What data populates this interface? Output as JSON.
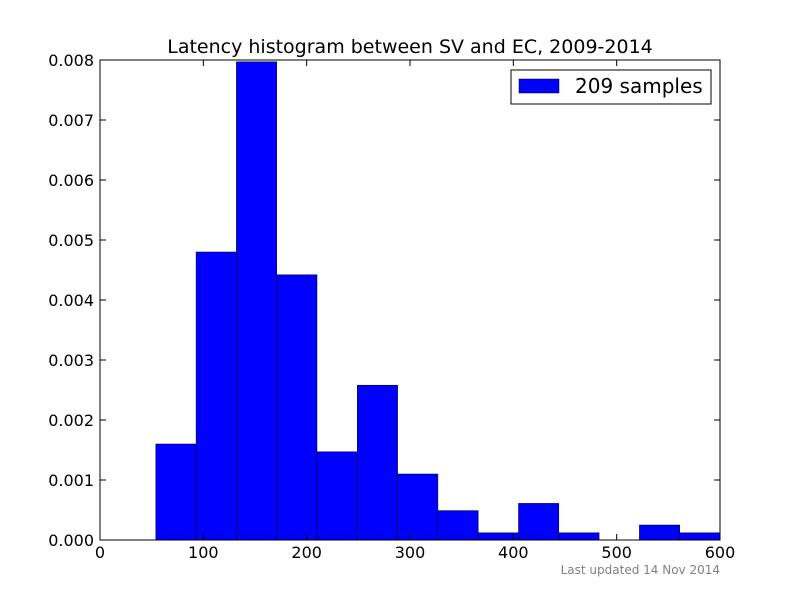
{
  "chart_data": {
    "type": "bar",
    "title": "Latency histogram between SV and EC, 2009-2014",
    "xlabel": "",
    "ylabel": "",
    "xlim": [
      0,
      600
    ],
    "ylim": [
      0,
      0.008
    ],
    "xticks": [
      0,
      100,
      200,
      300,
      400,
      500,
      600
    ],
    "xtick_labels": [
      "0",
      "100",
      "200",
      "300",
      "400",
      "500",
      "600"
    ],
    "yticks": [
      0,
      0.001,
      0.002,
      0.003,
      0.004,
      0.005,
      0.006,
      0.007,
      0.008
    ],
    "ytick_labels": [
      "0.000",
      "0.001",
      "0.002",
      "0.003",
      "0.004",
      "0.005",
      "0.006",
      "0.007",
      "0.008"
    ],
    "legend": {
      "label": "209 samples",
      "position": "top-right"
    },
    "grid": false,
    "bar_color": "#0000ff",
    "bins": [
      {
        "x0": 54,
        "x1": 93,
        "value": 0.0016
      },
      {
        "x0": 93,
        "x1": 132,
        "value": 0.0048
      },
      {
        "x0": 132,
        "x1": 171,
        "value": 0.00797
      },
      {
        "x0": 171,
        "x1": 210,
        "value": 0.00442
      },
      {
        "x0": 210,
        "x1": 249,
        "value": 0.00147
      },
      {
        "x0": 249,
        "x1": 288,
        "value": 0.00258
      },
      {
        "x0": 288,
        "x1": 327,
        "value": 0.0011
      },
      {
        "x0": 327,
        "x1": 366,
        "value": 0.00049
      },
      {
        "x0": 366,
        "x1": 405,
        "value": 0.00012
      },
      {
        "x0": 405,
        "x1": 444,
        "value": 0.00061
      },
      {
        "x0": 444,
        "x1": 483,
        "value": 0.00012
      },
      {
        "x0": 483,
        "x1": 522,
        "value": 0
      },
      {
        "x0": 522,
        "x1": 561,
        "value": 0.00025
      },
      {
        "x0": 561,
        "x1": 600,
        "value": 0.00012
      }
    ]
  },
  "footnote": "Last updated 14 Nov 2014"
}
